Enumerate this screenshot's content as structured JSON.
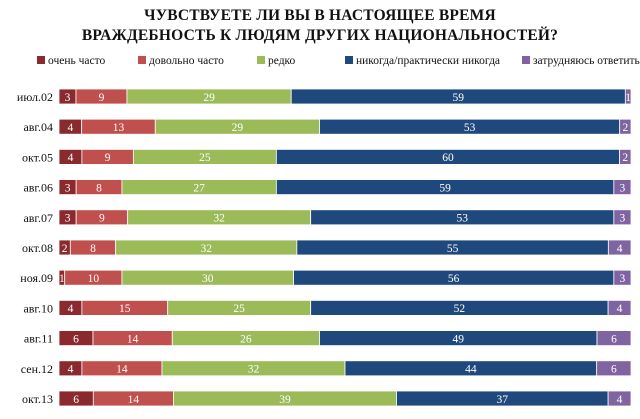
{
  "chart_data": {
    "type": "bar",
    "orientation": "horizontal",
    "stacked": true,
    "title_line1": "ЧУВСТВУЕТЕ ЛИ ВЫ В НАСТОЯЩЕЕ ВРЕМЯ",
    "title_line2": "ВРАЖДЕБНОСТЬ К ЛЮДЯМ ДРУГИХ НАЦИОНАЛЬНОСТЕЙ?",
    "legend_position": "top",
    "categories": [
      "июл.02",
      "авг.04",
      "окт.05",
      "авг.06",
      "авг.07",
      "окт.08",
      "ноя.09",
      "авг.10",
      "авг.11",
      "сен.12",
      "окт.13"
    ],
    "series": [
      {
        "name": "очень часто",
        "color": "#8b2a2e",
        "values": [
          3,
          4,
          4,
          3,
          3,
          2,
          1,
          4,
          6,
          4,
          6
        ]
      },
      {
        "name": "довольно часто",
        "color": "#c0504d",
        "values": [
          9,
          13,
          9,
          8,
          9,
          8,
          10,
          15,
          14,
          14,
          14
        ]
      },
      {
        "name": "редко",
        "color": "#9bbb59",
        "values": [
          29,
          29,
          25,
          27,
          32,
          32,
          30,
          25,
          26,
          32,
          39
        ]
      },
      {
        "name": "никогда/практически никогда",
        "color": "#1f497d",
        "values": [
          59,
          53,
          60,
          59,
          53,
          55,
          56,
          52,
          49,
          44,
          37
        ]
      },
      {
        "name": "затрудняюсь ответить",
        "color": "#8064a2",
        "values": [
          1,
          2,
          2,
          3,
          3,
          4,
          3,
          4,
          6,
          6,
          4
        ]
      }
    ],
    "xlim": [
      0,
      100
    ]
  }
}
